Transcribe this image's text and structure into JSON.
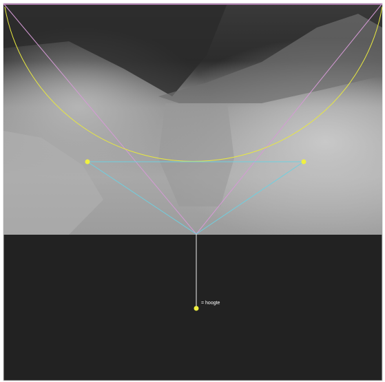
{
  "annotation": {
    "label": "= hoogte"
  }
}
